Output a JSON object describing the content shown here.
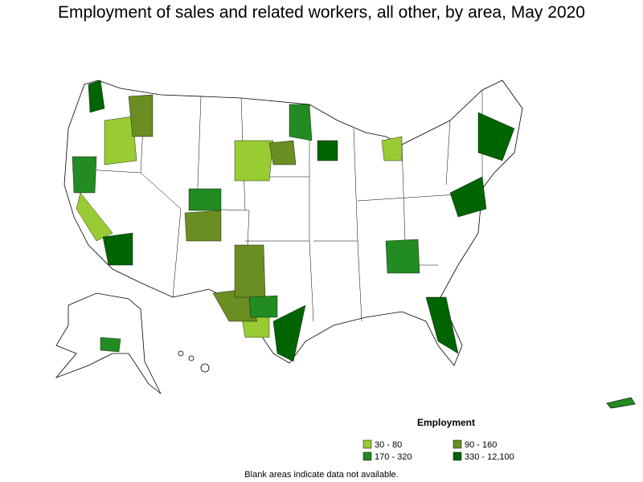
{
  "title": "Employment of sales and related workers, all other, by area, May 2020",
  "legend": {
    "title": "Employment",
    "items": [
      {
        "label": "30 - 80",
        "color": "#99cc33"
      },
      {
        "label": "90 - 160",
        "color": "#6b8e23"
      },
      {
        "label": "170 - 320",
        "color": "#228b22"
      },
      {
        "label": "330 - 12,100",
        "color": "#006400"
      }
    ]
  },
  "note": "Blank areas indicate data not available."
}
